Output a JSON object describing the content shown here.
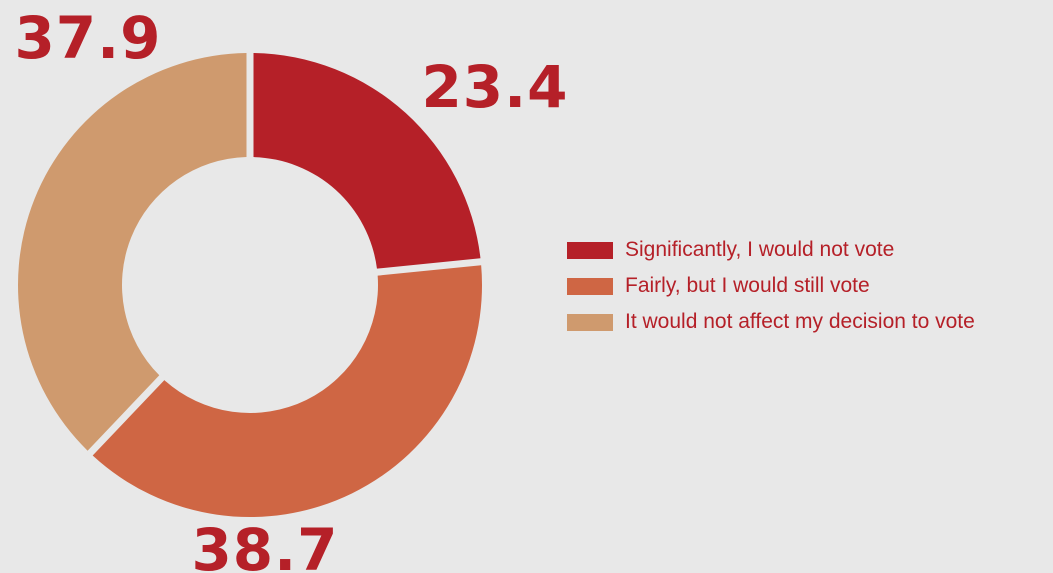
{
  "chart_data": {
    "type": "pie",
    "variant": "donut",
    "slices": [
      {
        "label": "Significantly, I would not vote",
        "value": 23.4,
        "display": "23.4",
        "color": "#b52028"
      },
      {
        "label": "Fairly, but I would still vote",
        "value": 38.7,
        "display": "38.7",
        "color": "#cf6644"
      },
      {
        "label": "It would not affect my decision to vote",
        "value": 37.9,
        "display": "37.9",
        "color": "#cf9a6e"
      }
    ],
    "value_label_color": "#b52028",
    "legend_position": "right",
    "background": "#e8e8e8"
  }
}
